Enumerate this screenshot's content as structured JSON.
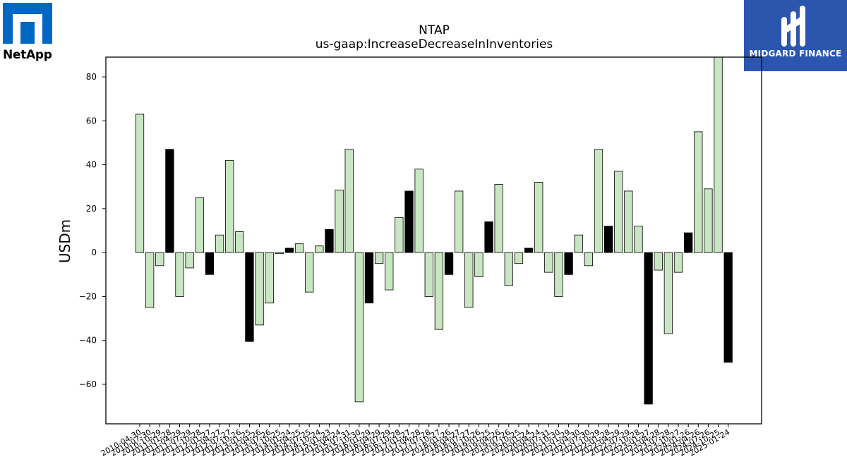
{
  "logos": {
    "left_brand": "NetApp",
    "right_brand": "MIDGARD FINANCE"
  },
  "colors": {
    "positive_bar": "#c9e6c2",
    "highlight_bar": "#000000",
    "netapp_blue": "#0067c5",
    "midgard_blue": "#2c56ae"
  },
  "chart_data": {
    "type": "bar",
    "title": "NTAP",
    "subtitle": "us-gaap:IncreaseDecreaseInInventories",
    "xlabel": "",
    "ylabel": "USDm",
    "ylim": [
      -78,
      89
    ],
    "yticks": [
      -60,
      -40,
      -20,
      0,
      20,
      40,
      60,
      80
    ],
    "grid": false,
    "categories": [
      "2010-04-30",
      "2010-07-30",
      "2010-10-29",
      "2011-01-28",
      "2011-04-29",
      "2011-07-29",
      "2011-10-28",
      "2012-01-27",
      "2012-04-27",
      "2012-07-27",
      "2012-10-26",
      "2013-01-25",
      "2013-04-26",
      "2013-07-26",
      "2013-10-25",
      "2014-01-24",
      "2014-04-25",
      "2014-07-25",
      "2014-10-24",
      "2015-01-23",
      "2015-04-24",
      "2015-07-31",
      "2015-10-30",
      "2016-01-29",
      "2016-04-29",
      "2016-07-29",
      "2016-10-28",
      "2017-01-27",
      "2017-04-28",
      "2017-07-28",
      "2017-10-27",
      "2018-01-26",
      "2018-04-27",
      "2018-07-27",
      "2018-10-26",
      "2019-01-25",
      "2019-04-26",
      "2019-07-26",
      "2019-10-25",
      "2020-01-24",
      "2020-04-24",
      "2020-07-31",
      "2020-10-30",
      "2021-01-29",
      "2021-04-30",
      "2021-07-30",
      "2021-10-29",
      "2022-01-28",
      "2022-04-29",
      "2022-07-29",
      "2022-10-28",
      "2023-01-27",
      "2023-04-28",
      "2023-07-28",
      "2023-10-27",
      "2024-01-26",
      "2024-04-26",
      "2024-07-26",
      "2024-10-25",
      "2025-01-24"
    ],
    "values": [
      63,
      -25,
      -6,
      47,
      -20,
      -7,
      25,
      -10,
      8,
      42,
      9.5,
      -40.5,
      -33,
      -23,
      -0.5,
      2,
      4,
      -18,
      3,
      10.5,
      28.5,
      47,
      -68,
      -23,
      -5,
      -17,
      16,
      28,
      38,
      -20,
      -35,
      -10,
      28,
      -25,
      -11,
      14,
      31,
      -15,
      -5,
      2,
      32,
      -9,
      -20,
      -10,
      8,
      -6,
      47,
      12,
      37,
      28,
      12,
      -69,
      -8,
      -37,
      -9,
      9,
      55,
      29,
      89,
      -50
    ],
    "highlighted": [
      false,
      false,
      false,
      true,
      false,
      false,
      false,
      true,
      false,
      false,
      false,
      true,
      false,
      false,
      false,
      true,
      false,
      false,
      false,
      true,
      false,
      false,
      false,
      true,
      false,
      false,
      false,
      true,
      false,
      false,
      false,
      true,
      false,
      false,
      false,
      true,
      false,
      false,
      false,
      true,
      false,
      false,
      false,
      true,
      false,
      false,
      false,
      true,
      false,
      false,
      false,
      true,
      false,
      false,
      false,
      true,
      false,
      false,
      false,
      true
    ]
  }
}
